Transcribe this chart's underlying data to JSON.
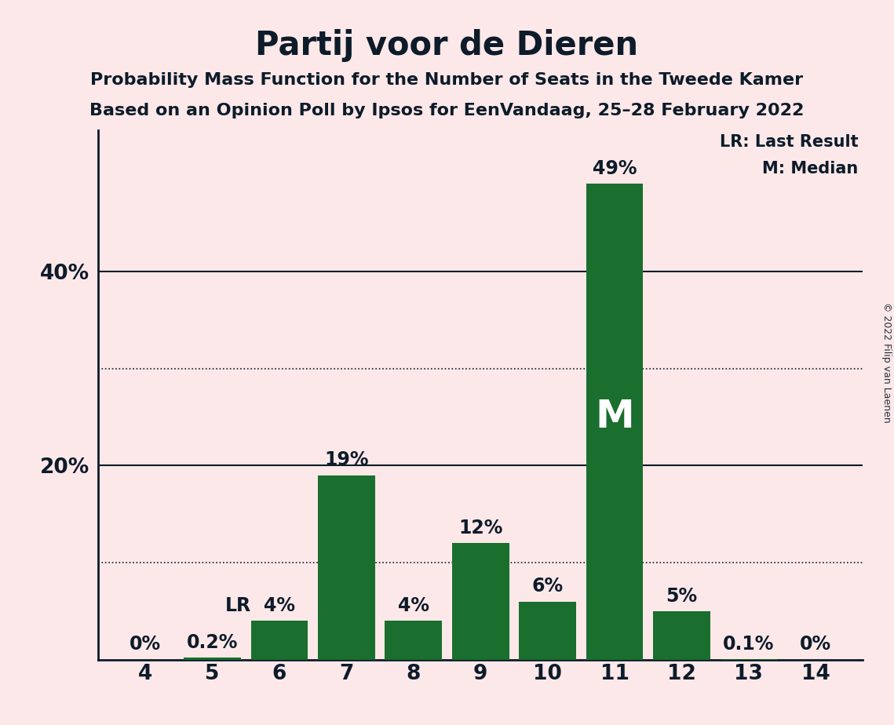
{
  "title": "Partij voor de Dieren",
  "subtitle1": "Probability Mass Function for the Number of Seats in the Tweede Kamer",
  "subtitle2": "Based on an Opinion Poll by Ipsos for EenVandaag, 25–28 February 2022",
  "copyright": "© 2022 Filip van Laenen",
  "seats": [
    4,
    5,
    6,
    7,
    8,
    9,
    10,
    11,
    12,
    13,
    14
  ],
  "values": [
    0.0,
    0.002,
    0.04,
    0.19,
    0.04,
    0.12,
    0.06,
    0.49,
    0.05,
    0.001,
    0.0
  ],
  "labels": [
    "0%",
    "0.2%",
    "4%",
    "19%",
    "4%",
    "12%",
    "6%",
    "49%",
    "5%",
    "0.1%",
    "0%"
  ],
  "bar_color": "#1a6e2e",
  "background_color": "#fce8e8",
  "text_color": "#0d1b2a",
  "last_result_seat": 6,
  "median_seat": 11,
  "ylim": [
    0,
    0.545
  ],
  "yticks": [
    0.2,
    0.4
  ],
  "ytick_labels": [
    "20%",
    "40%"
  ],
  "dotted_gridlines": [
    0.1,
    0.3
  ],
  "solid_gridlines": [
    0.2,
    0.4
  ],
  "legend_lr": "LR: Last Result",
  "legend_m": "M: Median",
  "title_fontsize": 30,
  "subtitle_fontsize": 16,
  "bar_label_fontsize": 17,
  "axis_label_fontsize": 19
}
